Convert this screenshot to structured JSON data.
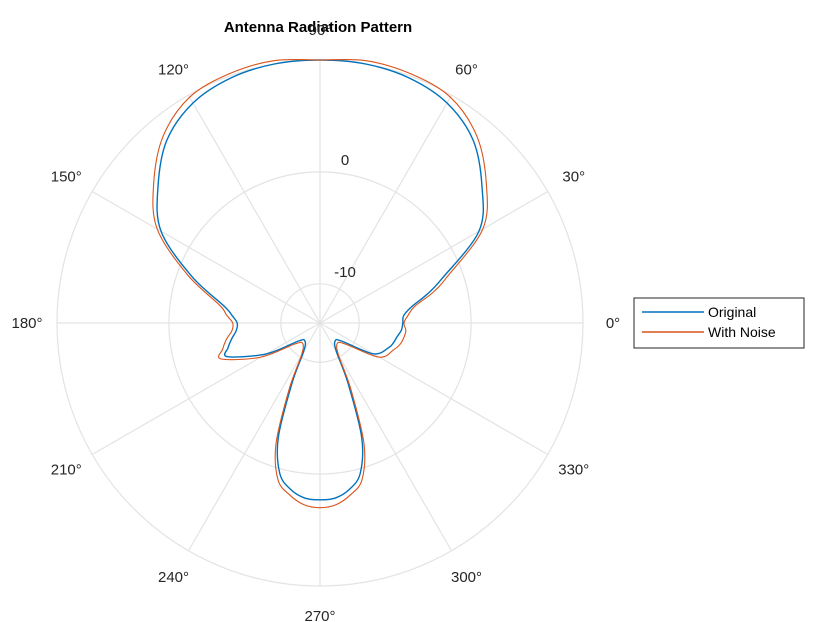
{
  "chart_data": {
    "type": "polar-line",
    "title": "Antenna Radiation Pattern",
    "theta_ticks_deg": [
      0,
      30,
      60,
      90,
      120,
      150,
      180,
      210,
      240,
      270,
      300,
      330
    ],
    "theta_tick_labels": [
      "0°",
      "30°",
      "60°",
      "90°",
      "120°",
      "150°",
      "180°",
      "210°",
      "240°",
      "270°",
      "300°",
      "330°"
    ],
    "r_ticks": [
      -10,
      0
    ],
    "r_tick_labels": [
      "-10",
      "0"
    ],
    "rlim": [
      -13.5,
      10
    ],
    "r_tick_angle_deg": 90,
    "grid": true,
    "legend_position": "outside-right",
    "series": [
      {
        "name": "Original",
        "color": "#0072BD",
        "theta_deg": [
          0,
          5,
          10,
          15,
          20,
          30,
          40,
          50,
          60,
          70,
          80,
          90,
          100,
          110,
          120,
          130,
          140,
          150,
          160,
          170,
          175,
          180,
          185,
          190,
          195,
          200,
          210,
          220,
          230,
          240,
          245,
          250,
          255,
          260,
          265,
          270,
          275,
          280,
          285,
          290,
          295,
          300,
          310,
          320,
          330,
          340,
          345,
          350,
          355,
          360
        ],
        "r": [
          -6.1,
          -6.0,
          -5.2,
          -3.6,
          -1.9,
          2.9,
          5.4,
          7.8,
          9.2,
          9.8,
          10.0,
          10.0,
          10.0,
          9.8,
          9.2,
          7.8,
          5.4,
          2.9,
          -1.3,
          -4.8,
          -5.6,
          -6.1,
          -6.0,
          -5.5,
          -5.0,
          -4.7,
          -8.0,
          -11.0,
          -11.4,
          -10.6,
          -7.6,
          -2.6,
          0.4,
          1.6,
          2.2,
          2.3,
          2.2,
          1.6,
          0.4,
          -2.6,
          -7.6,
          -10.6,
          -11.4,
          -11.0,
          -8.0,
          -7.0,
          -6.7,
          -6.5,
          -6.2,
          -6.1
        ]
      },
      {
        "name": "With Noise",
        "color": "#D95319",
        "theta_deg": [
          0,
          5,
          10,
          15,
          20,
          30,
          40,
          50,
          60,
          70,
          80,
          90,
          100,
          110,
          120,
          130,
          140,
          150,
          160,
          170,
          175,
          180,
          185,
          190,
          195,
          200,
          210,
          220,
          230,
          240,
          245,
          250,
          255,
          260,
          265,
          270,
          275,
          280,
          285,
          290,
          295,
          300,
          310,
          320,
          330,
          340,
          345,
          350,
          355,
          360
        ],
        "r": [
          -6.0,
          -5.6,
          -4.9,
          -3.1,
          -1.4,
          3.3,
          5.9,
          8.3,
          9.8,
          10.2,
          10.3,
          10.0,
          10.3,
          10.2,
          9.8,
          8.3,
          5.9,
          3.3,
          -0.9,
          -4.4,
          -5.1,
          -5.7,
          -5.6,
          -5.0,
          -4.5,
          -4.1,
          -7.4,
          -10.6,
          -11.1,
          -10.2,
          -7.0,
          -2.0,
          1.0,
          2.1,
          2.8,
          3.0,
          2.8,
          2.1,
          1.0,
          -2.0,
          -7.0,
          -10.2,
          -11.1,
          -10.6,
          -7.4,
          -6.5,
          -6.1,
          -5.9,
          -5.8,
          -6.0
        ]
      }
    ]
  }
}
